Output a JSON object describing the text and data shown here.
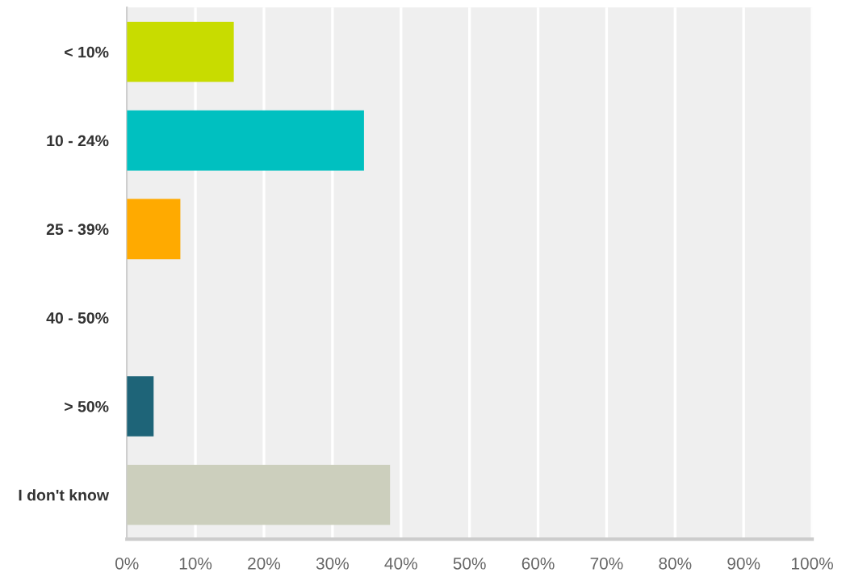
{
  "chart_data": {
    "type": "bar",
    "orientation": "horizontal",
    "categories": [
      "< 10%",
      "10 - 24%",
      "25 - 39%",
      "40 - 50%",
      "> 50%",
      "I don't know"
    ],
    "values": [
      15.6,
      34.6,
      7.8,
      0,
      3.9,
      38.4
    ],
    "colors": [
      "#c8dc00",
      "#00c0c0",
      "#ffaa00",
      "#a0a0a0",
      "#1e6478",
      "#cccfbd"
    ],
    "xlim": [
      0,
      100
    ],
    "xticks": [
      {
        "value": 0,
        "label": "0%"
      },
      {
        "value": 10,
        "label": "10%"
      },
      {
        "value": 20,
        "label": "20%"
      },
      {
        "value": 30,
        "label": "30%"
      },
      {
        "value": 40,
        "label": "40%"
      },
      {
        "value": 50,
        "label": "50%"
      },
      {
        "value": 60,
        "label": "60%"
      },
      {
        "value": 70,
        "label": "70%"
      },
      {
        "value": 80,
        "label": "80%"
      },
      {
        "value": 90,
        "label": "90%"
      },
      {
        "value": 100,
        "label": "100%"
      }
    ],
    "grid": "x"
  }
}
